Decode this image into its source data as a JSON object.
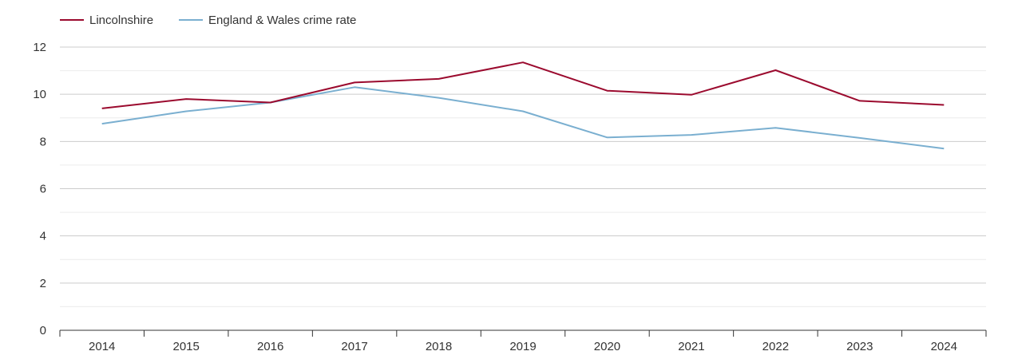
{
  "chart_data": {
    "type": "line",
    "title": "",
    "xlabel": "",
    "ylabel": "",
    "categories": [
      "2014",
      "2015",
      "2016",
      "2017",
      "2018",
      "2019",
      "2020",
      "2021",
      "2022",
      "2023",
      "2024"
    ],
    "ylim": [
      0,
      12
    ],
    "yticks": [
      "0",
      "2",
      "4",
      "6",
      "8",
      "10",
      "12"
    ],
    "grid": true,
    "legend_position": "top-left",
    "series": [
      {
        "name": "Lincolnshire",
        "color": "#9b0a2e",
        "values": [
          9.4,
          9.8,
          9.65,
          10.5,
          10.65,
          11.35,
          10.15,
          9.98,
          11.02,
          9.72,
          9.55
        ]
      },
      {
        "name": "England & Wales crime rate",
        "color": "#7aafd0",
        "values": [
          8.75,
          9.28,
          9.65,
          10.3,
          9.85,
          9.28,
          8.17,
          8.28,
          8.58,
          8.15,
          7.7
        ]
      }
    ]
  }
}
